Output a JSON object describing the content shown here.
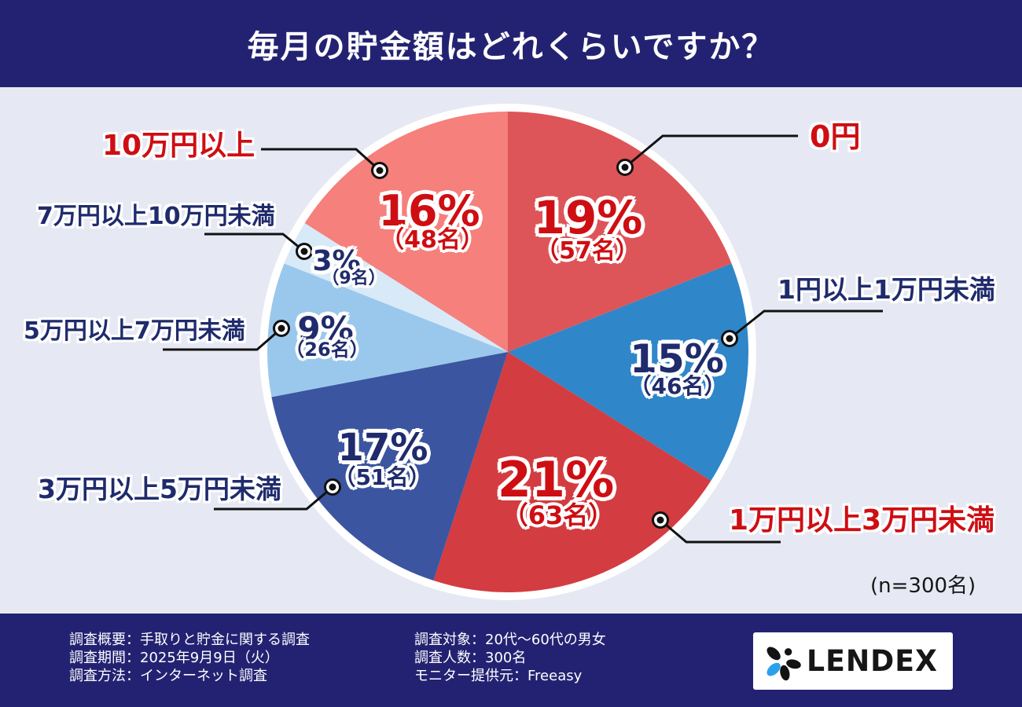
{
  "header": {
    "title": "毎月の貯金額はどれくらいですか？"
  },
  "chart_data": {
    "type": "pie",
    "title": "毎月の貯金額はどれくらいですか？",
    "n_label": "(n=300名)",
    "total_n": 300,
    "start_angle": "12-oclock",
    "direction": "clockwise",
    "segments": [
      {
        "label": "0円",
        "value": 19,
        "count": 57,
        "pct_label": "19%",
        "count_label": "（57名）",
        "color": "#DD5558",
        "text_color": "red"
      },
      {
        "label": "1円以上1万円未満",
        "value": 15,
        "count": 46,
        "pct_label": "15%",
        "count_label": "（46名）",
        "color": "#2F86C8",
        "text_color": "navy"
      },
      {
        "label": "1万円以上3万円未満",
        "value": 21,
        "count": 63,
        "pct_label": "21%",
        "count_label": "（63名）",
        "color": "#D33C40",
        "text_color": "red"
      },
      {
        "label": "3万円以上5万円未満",
        "value": 17,
        "count": 51,
        "pct_label": "17%",
        "count_label": "（51名）",
        "color": "#3C55A0",
        "text_color": "navy"
      },
      {
        "label": "5万円以上7万円未満",
        "value": 9,
        "count": 26,
        "pct_label": "9%",
        "count_label": "（26名）",
        "color": "#9AC8EC",
        "text_color": "navy"
      },
      {
        "label": "7万円以上10万円未満",
        "value": 3,
        "count": 9,
        "pct_label": "3%",
        "count_label": "（9名）",
        "color": "#D8E9F8",
        "text_color": "navy"
      },
      {
        "label": "10万円以上",
        "value": 16,
        "count": 48,
        "pct_label": "16%",
        "count_label": "（48名）",
        "color": "#F5807C",
        "text_color": "red"
      }
    ]
  },
  "colors": {
    "header_bg": "#232272",
    "footer_bg": "#232272",
    "background": "#E6E9F3",
    "text_red": "#CE0E13",
    "text_navy": "#1F2B6C",
    "callout_line": "#111111",
    "pie_ring": "#FFFFFF",
    "logo_blue_petal": "#2BA1EC"
  },
  "footer": {
    "left_lines": [
      "調査概要：手取りと貯金に関する調査",
      "調査期間：2025年9月9日（火）",
      "調査方法：インターネット調査"
    ],
    "right_lines": [
      "調査対象：20代〜60代の男女",
      "調査人数：300名",
      "モニター提供元：Freeasy"
    ],
    "logo_text": "LENDEX"
  }
}
